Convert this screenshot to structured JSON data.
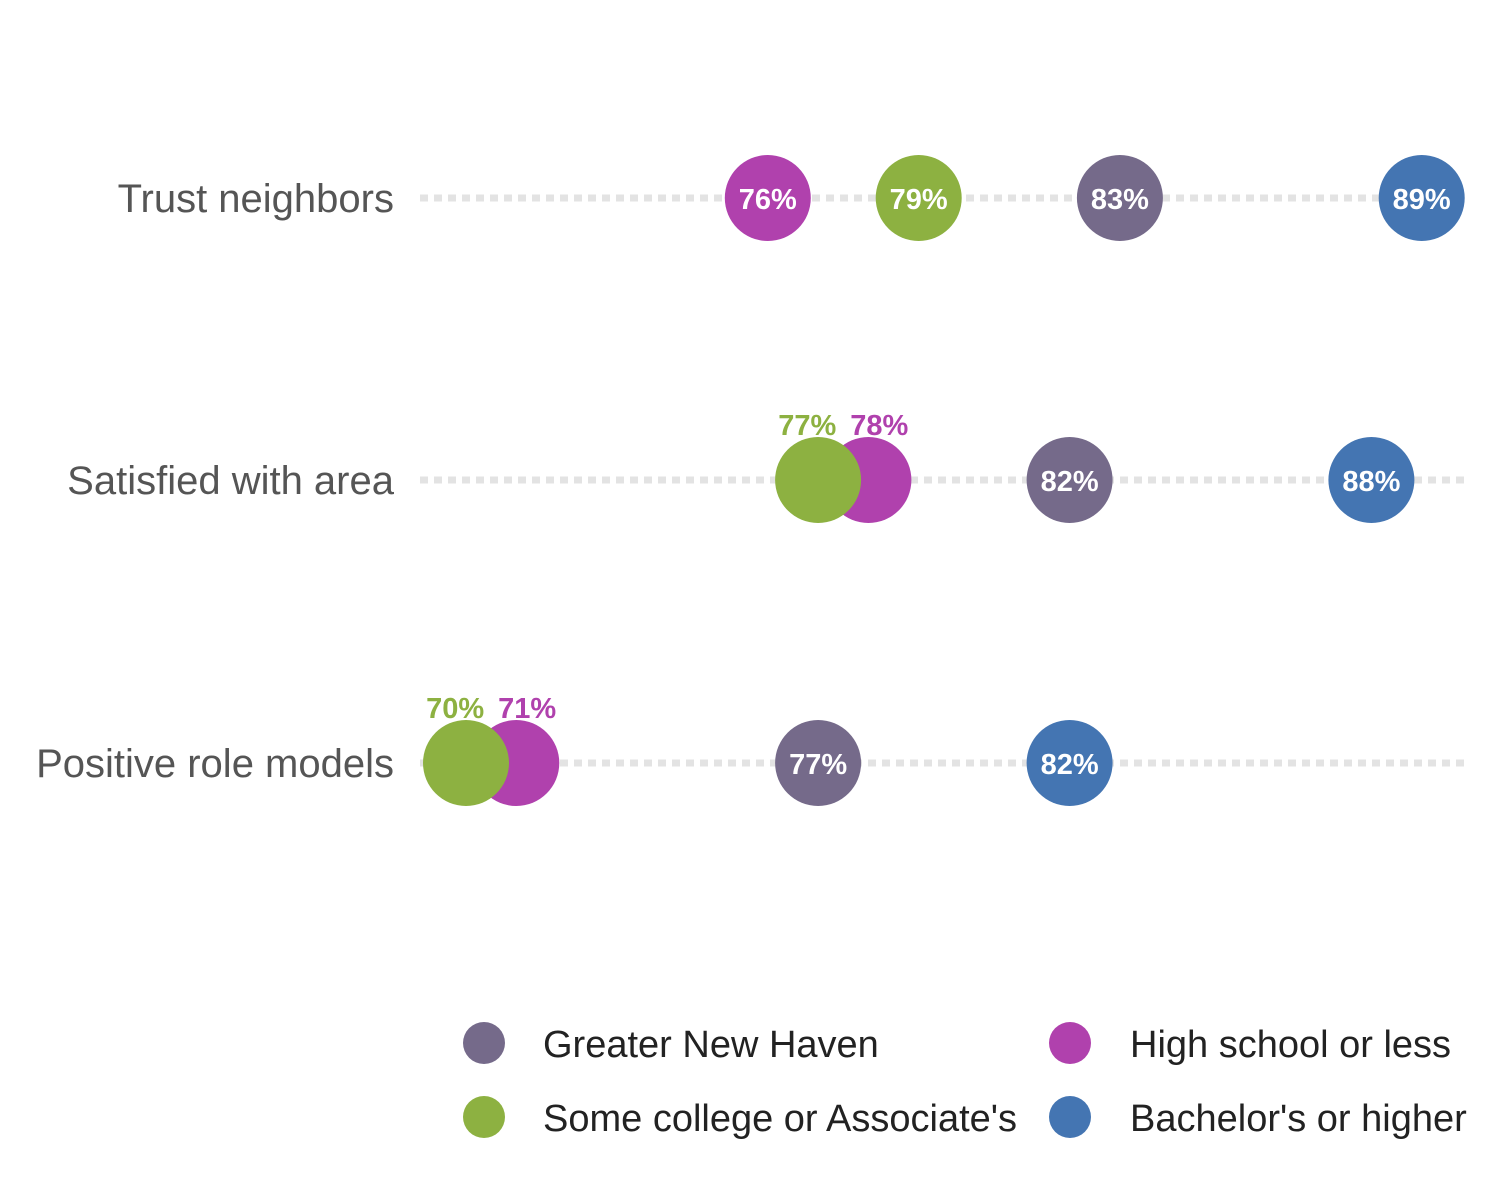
{
  "chart_data": {
    "type": "scatter",
    "title": "",
    "xlabel": "",
    "ylabel": "",
    "xlim": [
      69,
      90
    ],
    "grid": false,
    "legend_position": "bottom-right",
    "categories": [
      "Trust neighbors",
      "Satisfied with area",
      "Positive role models"
    ],
    "series": [
      {
        "name": "Greater New Haven",
        "color": "#756a8a",
        "values": [
          83,
          82,
          77
        ],
        "labels": [
          "83%",
          "82%",
          "77%"
        ]
      },
      {
        "name": "High school or less",
        "color": "#b041ad",
        "values": [
          76,
          78,
          71
        ],
        "labels": [
          "76%",
          "78%",
          "71%"
        ]
      },
      {
        "name": "Some college or Associate's",
        "color": "#8db141",
        "values": [
          79,
          77,
          70
        ],
        "labels": [
          "79%",
          "77%",
          "70%"
        ]
      },
      {
        "name": "Bachelor's or higher",
        "color": "#4475b2",
        "values": [
          89,
          88,
          82
        ],
        "labels": [
          "89%",
          "88%",
          "82%"
        ]
      }
    ]
  }
}
